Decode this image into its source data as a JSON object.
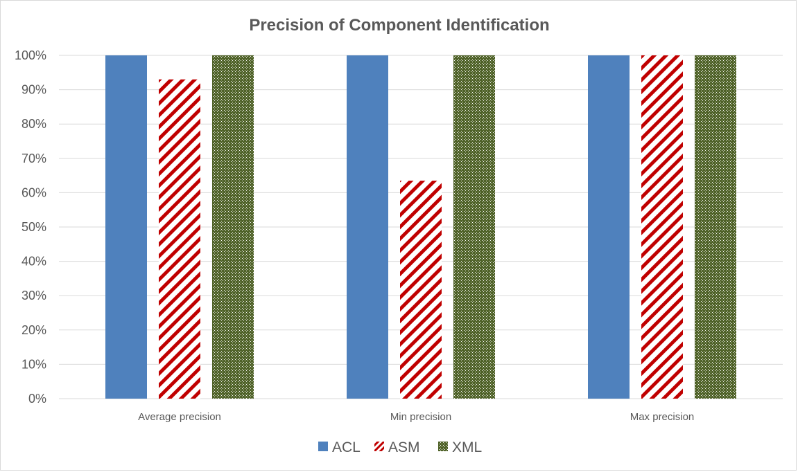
{
  "colors": {
    "ACL": "#4f81bd",
    "ASM": "#c00000",
    "XML": "#4f6228",
    "grid": "#d9d9d9",
    "text": "#595959"
  },
  "chart_data": {
    "type": "bar",
    "title": "Precision of Component Identification",
    "xlabel": "",
    "ylabel": "",
    "ylim": [
      0,
      100
    ],
    "y_ticks": [
      "0%",
      "10%",
      "20%",
      "30%",
      "40%",
      "50%",
      "60%",
      "70%",
      "80%",
      "90%",
      "100%"
    ],
    "categories": [
      "Average precision",
      "Min precision",
      "Max precision"
    ],
    "series": [
      {
        "name": "ACL",
        "values": [
          100,
          100,
          100
        ],
        "pattern": "solid"
      },
      {
        "name": "ASM",
        "values": [
          93,
          63.5,
          100
        ],
        "pattern": "diagonal-stripes"
      },
      {
        "name": "XML",
        "values": [
          100,
          100,
          100
        ],
        "pattern": "checkered"
      }
    ],
    "grid": true,
    "legend_position": "bottom"
  }
}
